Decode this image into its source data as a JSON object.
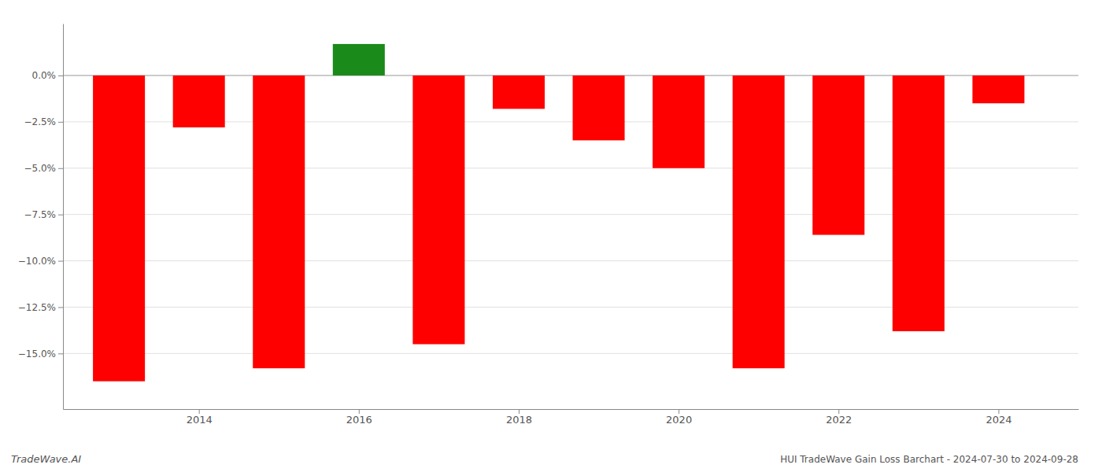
{
  "chart_data": {
    "type": "bar",
    "title": "HUI TradeWave Gain Loss Barchart - 2024-07-30 to 2024-09-28",
    "annotations": [
      "TradeWave.AI"
    ],
    "x": [
      2013,
      2014,
      2015,
      2016,
      2017,
      2018,
      2019,
      2020,
      2021,
      2022,
      2023,
      2024
    ],
    "values": [
      -16.5,
      -2.8,
      -15.8,
      1.7,
      -14.5,
      -1.8,
      -3.5,
      -5.0,
      -15.8,
      -8.6,
      -13.8,
      -1.5
    ],
    "colors": [
      "#ff0000",
      "#ff0000",
      "#ff0000",
      "#1a8a1a",
      "#ff0000",
      "#ff0000",
      "#ff0000",
      "#ff0000",
      "#ff0000",
      "#ff0000",
      "#ff0000",
      "#ff0000"
    ],
    "xlim": [
      2012.3,
      2025.0
    ],
    "xticks": [
      2014,
      2016,
      2018,
      2020,
      2022,
      2024
    ],
    "ylim": [
      -18.0,
      2.8
    ],
    "yticks": [
      {
        "value": 0.0,
        "label": "0.0%"
      },
      {
        "value": -2.5,
        "label": "−2.5%"
      },
      {
        "value": -5.0,
        "label": "−5.0%"
      },
      {
        "value": -7.5,
        "label": "−7.5%"
      },
      {
        "value": -10.0,
        "label": "−10.0%"
      },
      {
        "value": -12.5,
        "label": "−12.5%"
      },
      {
        "value": -15.0,
        "label": "−15.0%"
      }
    ],
    "grid": true
  }
}
